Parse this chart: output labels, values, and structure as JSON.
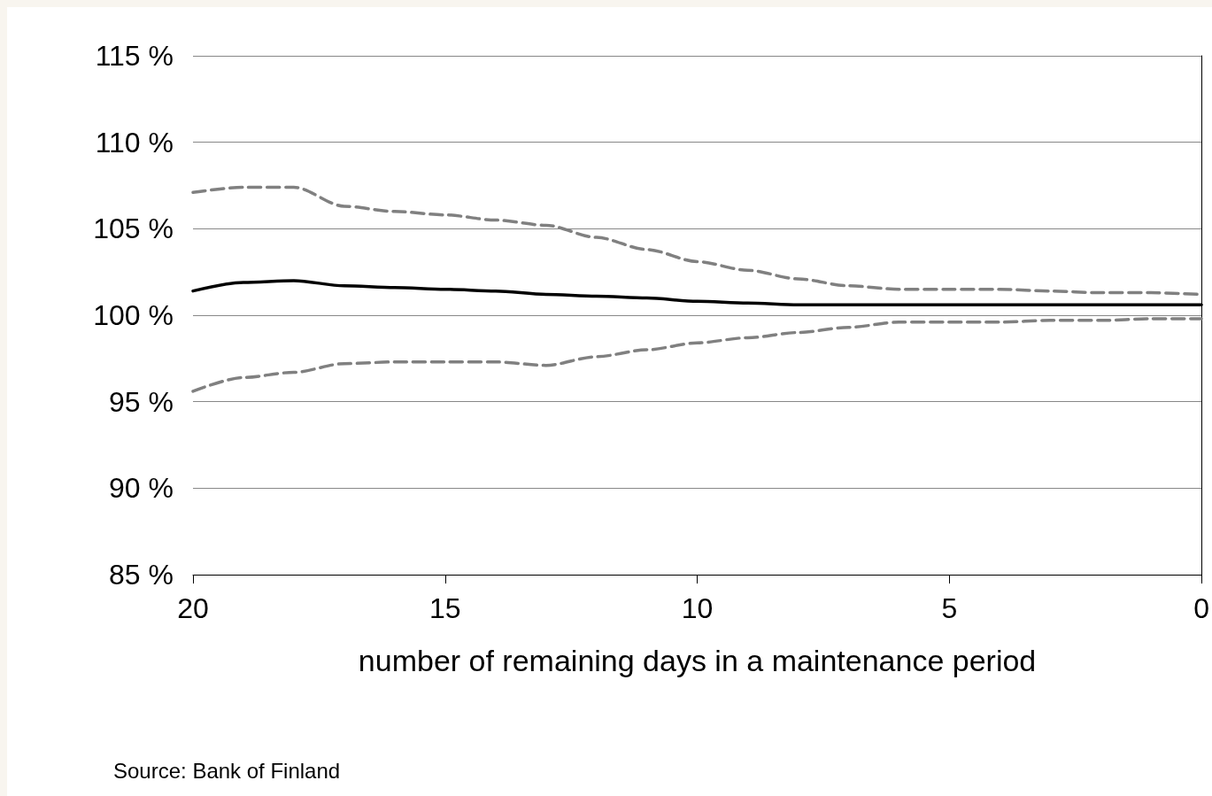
{
  "chart_data": {
    "type": "line",
    "xlabel": "number of remaining days in a maintenance period",
    "x": [
      20,
      19,
      18,
      17,
      16,
      15,
      14,
      13,
      12,
      11,
      10,
      9,
      8,
      7,
      6,
      5,
      4,
      3,
      2,
      1,
      0
    ],
    "series": [
      {
        "color": "#808080",
        "line_style": "dashed",
        "values": [
          107.1,
          107.4,
          107.4,
          106.3,
          106.0,
          105.8,
          105.5,
          105.2,
          104.5,
          103.8,
          103.1,
          102.6,
          102.1,
          101.7,
          101.5,
          101.5,
          101.5,
          101.4,
          101.3,
          101.3,
          101.2
        ]
      },
      {
        "color": "#000000",
        "line_style": "solid",
        "values": [
          101.4,
          101.9,
          102.0,
          101.7,
          101.6,
          101.5,
          101.4,
          101.2,
          101.1,
          101.0,
          100.8,
          100.7,
          100.6,
          100.6,
          100.6,
          100.6,
          100.6,
          100.6,
          100.6,
          100.6,
          100.6
        ]
      },
      {
        "color": "#808080",
        "line_style": "dashed",
        "values": [
          95.6,
          96.4,
          96.7,
          97.2,
          97.3,
          97.3,
          97.3,
          97.1,
          97.6,
          98.0,
          98.4,
          98.7,
          99.0,
          99.3,
          99.6,
          99.6,
          99.6,
          99.7,
          99.7,
          99.8,
          99.8
        ]
      }
    ],
    "xlim": [
      20,
      0
    ],
    "xticks": [
      20,
      15,
      10,
      5,
      0
    ],
    "ylim": [
      85,
      115
    ],
    "yticks": [
      {
        "value": 85,
        "label": "85 %"
      },
      {
        "value": 90,
        "label": "90 %"
      },
      {
        "value": 95,
        "label": "95 %"
      },
      {
        "value": 100,
        "label": "100 %"
      },
      {
        "value": 105,
        "label": "105 %"
      },
      {
        "value": 110,
        "label": "110 %"
      },
      {
        "value": 115,
        "label": "115 %"
      }
    ],
    "grid": "y",
    "marker": "none",
    "annotations": [
      "Source: Bank of Finland"
    ]
  }
}
